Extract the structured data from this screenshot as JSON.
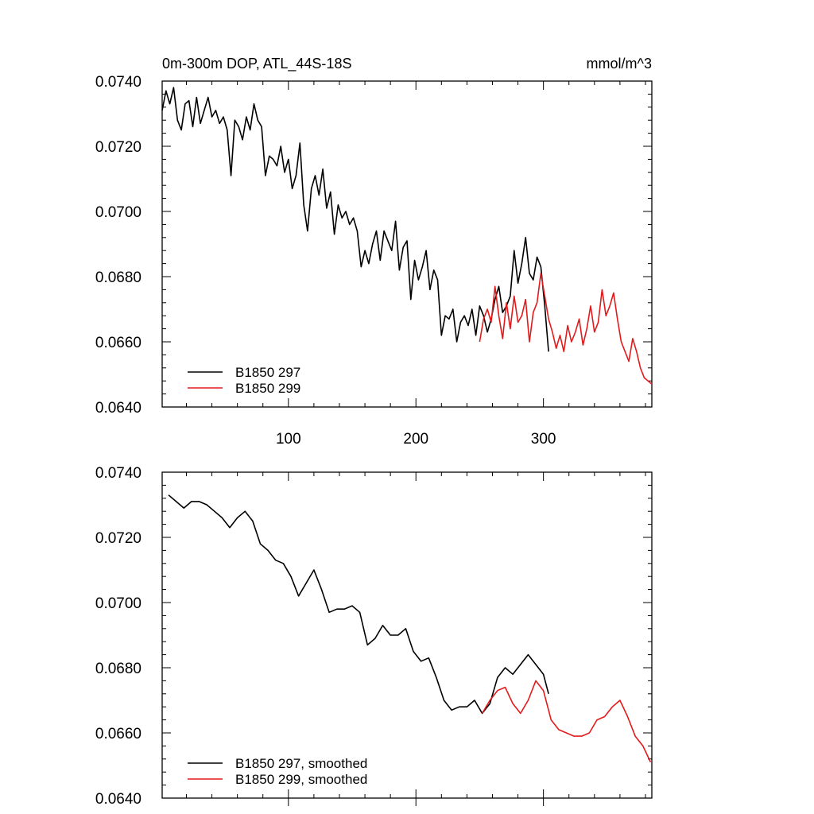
{
  "figure": {
    "title_left": "0m-300m DOP, ATL_44S-18S",
    "title_right": "mmol/m^3"
  },
  "chart_data": [
    {
      "type": "line",
      "panel": "top",
      "xlim": [
        1,
        385
      ],
      "ylim": [
        0.064,
        0.074
      ],
      "x_ticks": [
        100,
        200,
        300
      ],
      "x_tick_labels": [
        "100",
        "200",
        "300"
      ],
      "y_ticks": [
        0.064,
        0.066,
        0.068,
        0.07,
        0.072,
        0.074
      ],
      "y_tick_labels": [
        "0.0640",
        "0.0660",
        "0.0680",
        "0.0700",
        "0.0720",
        "0.0740"
      ],
      "legend_position": "bottom-left",
      "series": [
        {
          "name": "B1850 297",
          "color": "#000000",
          "x": [
            1,
            4,
            7,
            10,
            13,
            16,
            19,
            22,
            25,
            28,
            31,
            34,
            37,
            40,
            43,
            46,
            49,
            52,
            55,
            58,
            61,
            64,
            67,
            70,
            73,
            76,
            79,
            82,
            85,
            88,
            91,
            94,
            97,
            100,
            103,
            106,
            109,
            112,
            115,
            118,
            121,
            124,
            127,
            130,
            133,
            136,
            139,
            142,
            145,
            148,
            151,
            154,
            157,
            160,
            163,
            166,
            169,
            172,
            175,
            178,
            181,
            184,
            187,
            190,
            193,
            196,
            199,
            202,
            205,
            208,
            211,
            214,
            217,
            220,
            223,
            226,
            229,
            232,
            235,
            238,
            241,
            244,
            247,
            250,
            253,
            256,
            259,
            262,
            265,
            268,
            271,
            274,
            277,
            280,
            283,
            286,
            289,
            292,
            295,
            298,
            301,
            304
          ],
          "y": [
            0.0731,
            0.0737,
            0.0733,
            0.0738,
            0.0728,
            0.0725,
            0.0733,
            0.0734,
            0.0726,
            0.0735,
            0.0727,
            0.0731,
            0.0735,
            0.0729,
            0.0731,
            0.0727,
            0.0729,
            0.0725,
            0.0711,
            0.0728,
            0.0726,
            0.0722,
            0.0729,
            0.0725,
            0.0733,
            0.0728,
            0.0726,
            0.0711,
            0.0717,
            0.0716,
            0.0714,
            0.072,
            0.0712,
            0.0716,
            0.0707,
            0.0711,
            0.0721,
            0.0702,
            0.0694,
            0.0707,
            0.0711,
            0.0705,
            0.0713,
            0.0701,
            0.0706,
            0.0693,
            0.0702,
            0.0698,
            0.07,
            0.0696,
            0.0698,
            0.0694,
            0.0683,
            0.0688,
            0.0684,
            0.069,
            0.0694,
            0.0685,
            0.0694,
            0.0691,
            0.0688,
            0.0697,
            0.0682,
            0.0689,
            0.0691,
            0.0673,
            0.0685,
            0.0679,
            0.0683,
            0.0688,
            0.0676,
            0.0682,
            0.0679,
            0.0662,
            0.0668,
            0.0667,
            0.067,
            0.066,
            0.0666,
            0.0668,
            0.0665,
            0.067,
            0.0662,
            0.0671,
            0.0668,
            0.0663,
            0.0667,
            0.0673,
            0.0677,
            0.0669,
            0.0671,
            0.0674,
            0.0688,
            0.0678,
            0.0684,
            0.0692,
            0.0681,
            0.0679,
            0.0686,
            0.0683,
            0.0671,
            0.0657
          ]
        },
        {
          "name": "B1850 299",
          "color": "#e31a1c",
          "x": [
            250,
            253,
            256,
            259,
            262,
            265,
            268,
            271,
            274,
            277,
            280,
            283,
            286,
            289,
            292,
            295,
            298,
            301,
            304,
            307,
            310,
            313,
            316,
            319,
            322,
            325,
            328,
            331,
            334,
            337,
            340,
            343,
            346,
            349,
            352,
            355,
            358,
            361,
            364,
            367,
            370,
            373,
            376,
            379,
            382,
            385
          ],
          "y": [
            0.066,
            0.0667,
            0.067,
            0.0666,
            0.0677,
            0.0668,
            0.0661,
            0.0672,
            0.0664,
            0.0674,
            0.0666,
            0.0668,
            0.0673,
            0.066,
            0.0669,
            0.0672,
            0.0681,
            0.0674,
            0.0667,
            0.0663,
            0.0658,
            0.0662,
            0.0657,
            0.0665,
            0.066,
            0.0663,
            0.0667,
            0.0659,
            0.0664,
            0.0671,
            0.0663,
            0.0666,
            0.0676,
            0.0668,
            0.0671,
            0.0675,
            0.0667,
            0.066,
            0.0657,
            0.0654,
            0.0661,
            0.0657,
            0.0652,
            0.0649,
            0.0648,
            0.0647
          ]
        }
      ]
    },
    {
      "type": "line",
      "panel": "bottom",
      "xlim": [
        1,
        385
      ],
      "ylim": [
        0.064,
        0.074
      ],
      "x_ticks": [
        100,
        200,
        300
      ],
      "y_ticks": [
        0.064,
        0.066,
        0.068,
        0.07,
        0.072,
        0.074
      ],
      "y_tick_labels": [
        "0.0640",
        "0.0660",
        "0.0680",
        "0.0700",
        "0.0720",
        "0.0740"
      ],
      "legend_position": "bottom-left",
      "series": [
        {
          "name": "B1850 297, smoothed",
          "color": "#000000",
          "x": [
            6,
            12,
            18,
            24,
            30,
            36,
            42,
            48,
            54,
            60,
            66,
            72,
            78,
            84,
            90,
            96,
            102,
            108,
            114,
            120,
            126,
            132,
            138,
            144,
            150,
            156,
            162,
            168,
            174,
            180,
            186,
            192,
            198,
            204,
            210,
            216,
            222,
            228,
            234,
            240,
            246,
            252,
            258,
            264,
            270,
            276,
            282,
            288,
            294,
            300,
            304
          ],
          "y": [
            0.0733,
            0.0731,
            0.0729,
            0.0731,
            0.0731,
            0.073,
            0.0728,
            0.0726,
            0.0723,
            0.0726,
            0.0728,
            0.0725,
            0.0718,
            0.0716,
            0.0713,
            0.0712,
            0.0708,
            0.0702,
            0.0706,
            0.071,
            0.0704,
            0.0697,
            0.0698,
            0.0698,
            0.0699,
            0.0697,
            0.0687,
            0.0689,
            0.0693,
            0.069,
            0.069,
            0.0692,
            0.0685,
            0.0682,
            0.0683,
            0.0677,
            0.067,
            0.0667,
            0.0668,
            0.0668,
            0.067,
            0.0666,
            0.0669,
            0.0677,
            0.068,
            0.0678,
            0.0681,
            0.0684,
            0.0681,
            0.0678,
            0.0672
          ]
        },
        {
          "name": "B1850 299, smoothed",
          "color": "#e31a1c",
          "x": [
            252,
            258,
            264,
            270,
            276,
            282,
            288,
            294,
            300,
            306,
            312,
            318,
            324,
            330,
            336,
            342,
            348,
            354,
            360,
            366,
            372,
            378,
            384
          ],
          "y": [
            0.0666,
            0.067,
            0.0673,
            0.0674,
            0.0669,
            0.0666,
            0.067,
            0.0676,
            0.0673,
            0.0664,
            0.0661,
            0.066,
            0.0659,
            0.0659,
            0.066,
            0.0664,
            0.0665,
            0.0668,
            0.067,
            0.0665,
            0.0659,
            0.0656,
            0.0651
          ]
        }
      ]
    }
  ]
}
